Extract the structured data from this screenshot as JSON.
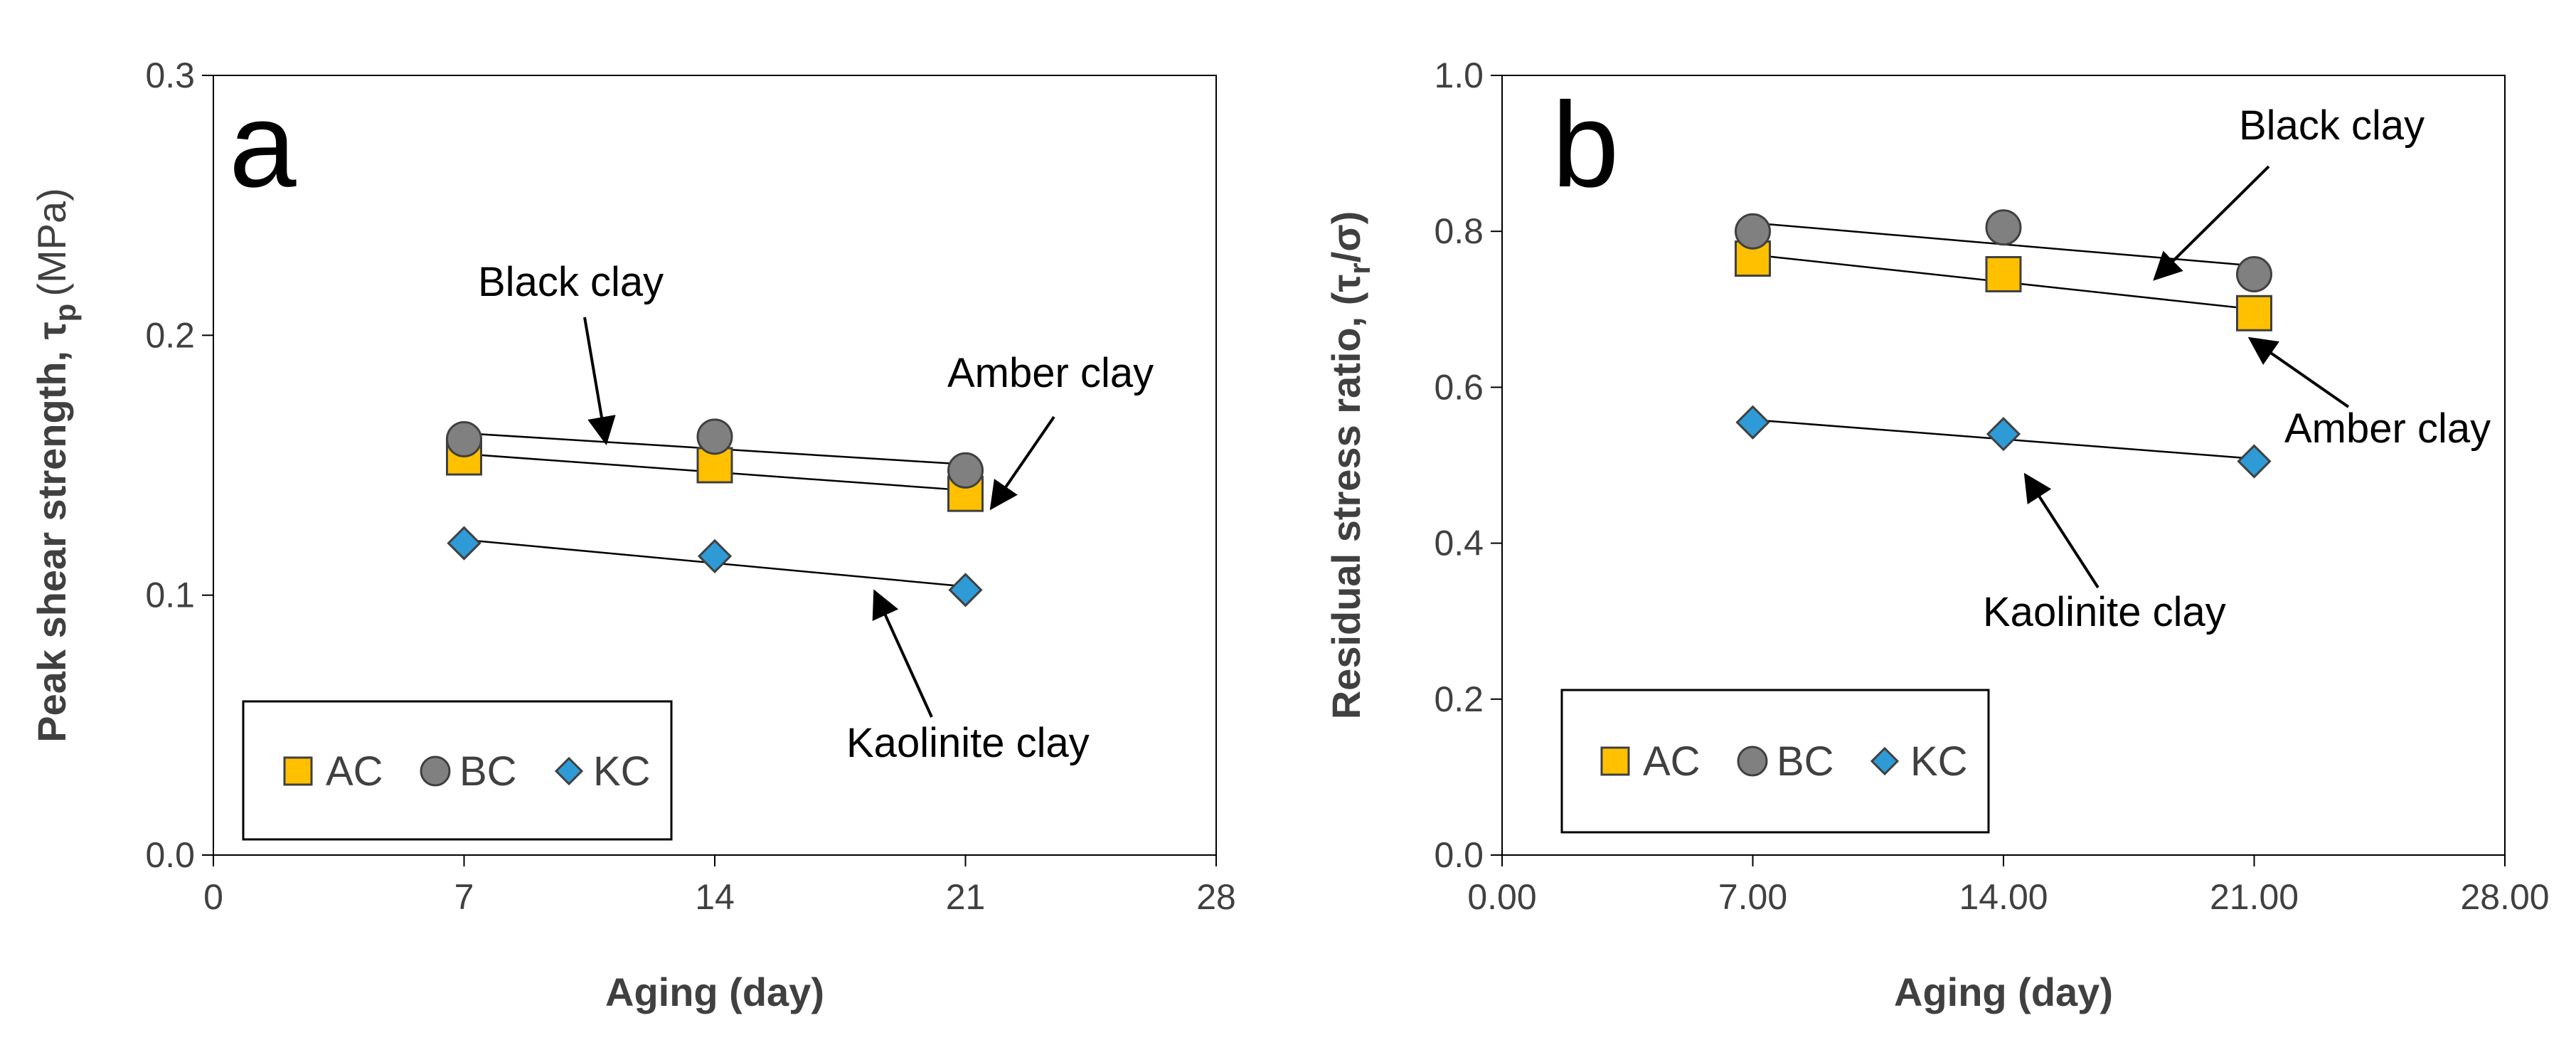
{
  "chart_data": [
    {
      "type": "scatter",
      "panel_label": "a",
      "xlabel": "Aging (day)",
      "ylabel": "Peak shear strength, τ",
      "ylabel_sub": "p",
      "ylabel_unit": "(MPa)",
      "xlim": [
        0,
        28
      ],
      "ylim": [
        0,
        0.3
      ],
      "xticks": [
        "0",
        "7",
        "14",
        "21",
        "28"
      ],
      "yticks": [
        "0.0",
        "0.1",
        "0.2",
        "0.3"
      ],
      "x": [
        7,
        14,
        21
      ],
      "series": [
        {
          "name": "AC",
          "marker": "square",
          "color": "#FFC000",
          "values": [
            0.153,
            0.15,
            0.139
          ]
        },
        {
          "name": "BC",
          "marker": "circle",
          "color": "#808080",
          "values": [
            0.16,
            0.161,
            0.148
          ]
        },
        {
          "name": "KC",
          "marker": "diamond",
          "color": "#2E9AD6",
          "values": [
            0.12,
            0.115,
            0.102
          ]
        }
      ],
      "annotations": [
        {
          "text": "Black clay",
          "target": "BC"
        },
        {
          "text": "Amber clay",
          "target": "AC"
        },
        {
          "text": "Kaolinite clay",
          "target": "KC"
        }
      ],
      "legend": "bottom-left",
      "grid": false
    },
    {
      "type": "scatter",
      "panel_label": "b",
      "xlabel": "Aging (day)",
      "ylabel": "Residual stress ratio, (τ",
      "ylabel_sub": "r",
      "ylabel_unit": "/σ)",
      "xlim": [
        0,
        28
      ],
      "ylim": [
        0,
        1.0
      ],
      "xticks": [
        "0.00",
        "7.00",
        "14.00",
        "21.00",
        "28.00"
      ],
      "yticks": [
        "0.0",
        "0.2",
        "0.4",
        "0.6",
        "0.8",
        "1.0"
      ],
      "x": [
        7,
        14,
        21
      ],
      "series": [
        {
          "name": "AC",
          "marker": "square",
          "color": "#FFC000",
          "values": [
            0.765,
            0.745,
            0.695
          ]
        },
        {
          "name": "BC",
          "marker": "circle",
          "color": "#808080",
          "values": [
            0.8,
            0.805,
            0.745
          ]
        },
        {
          "name": "KC",
          "marker": "diamond",
          "color": "#2E9AD6",
          "values": [
            0.555,
            0.54,
            0.505
          ]
        }
      ],
      "annotations": [
        {
          "text": "Black clay",
          "target": "BC"
        },
        {
          "text": "Amber clay",
          "target": "AC"
        },
        {
          "text": "Kaolinite clay",
          "target": "KC"
        }
      ],
      "legend": "bottom-left",
      "grid": false
    }
  ]
}
